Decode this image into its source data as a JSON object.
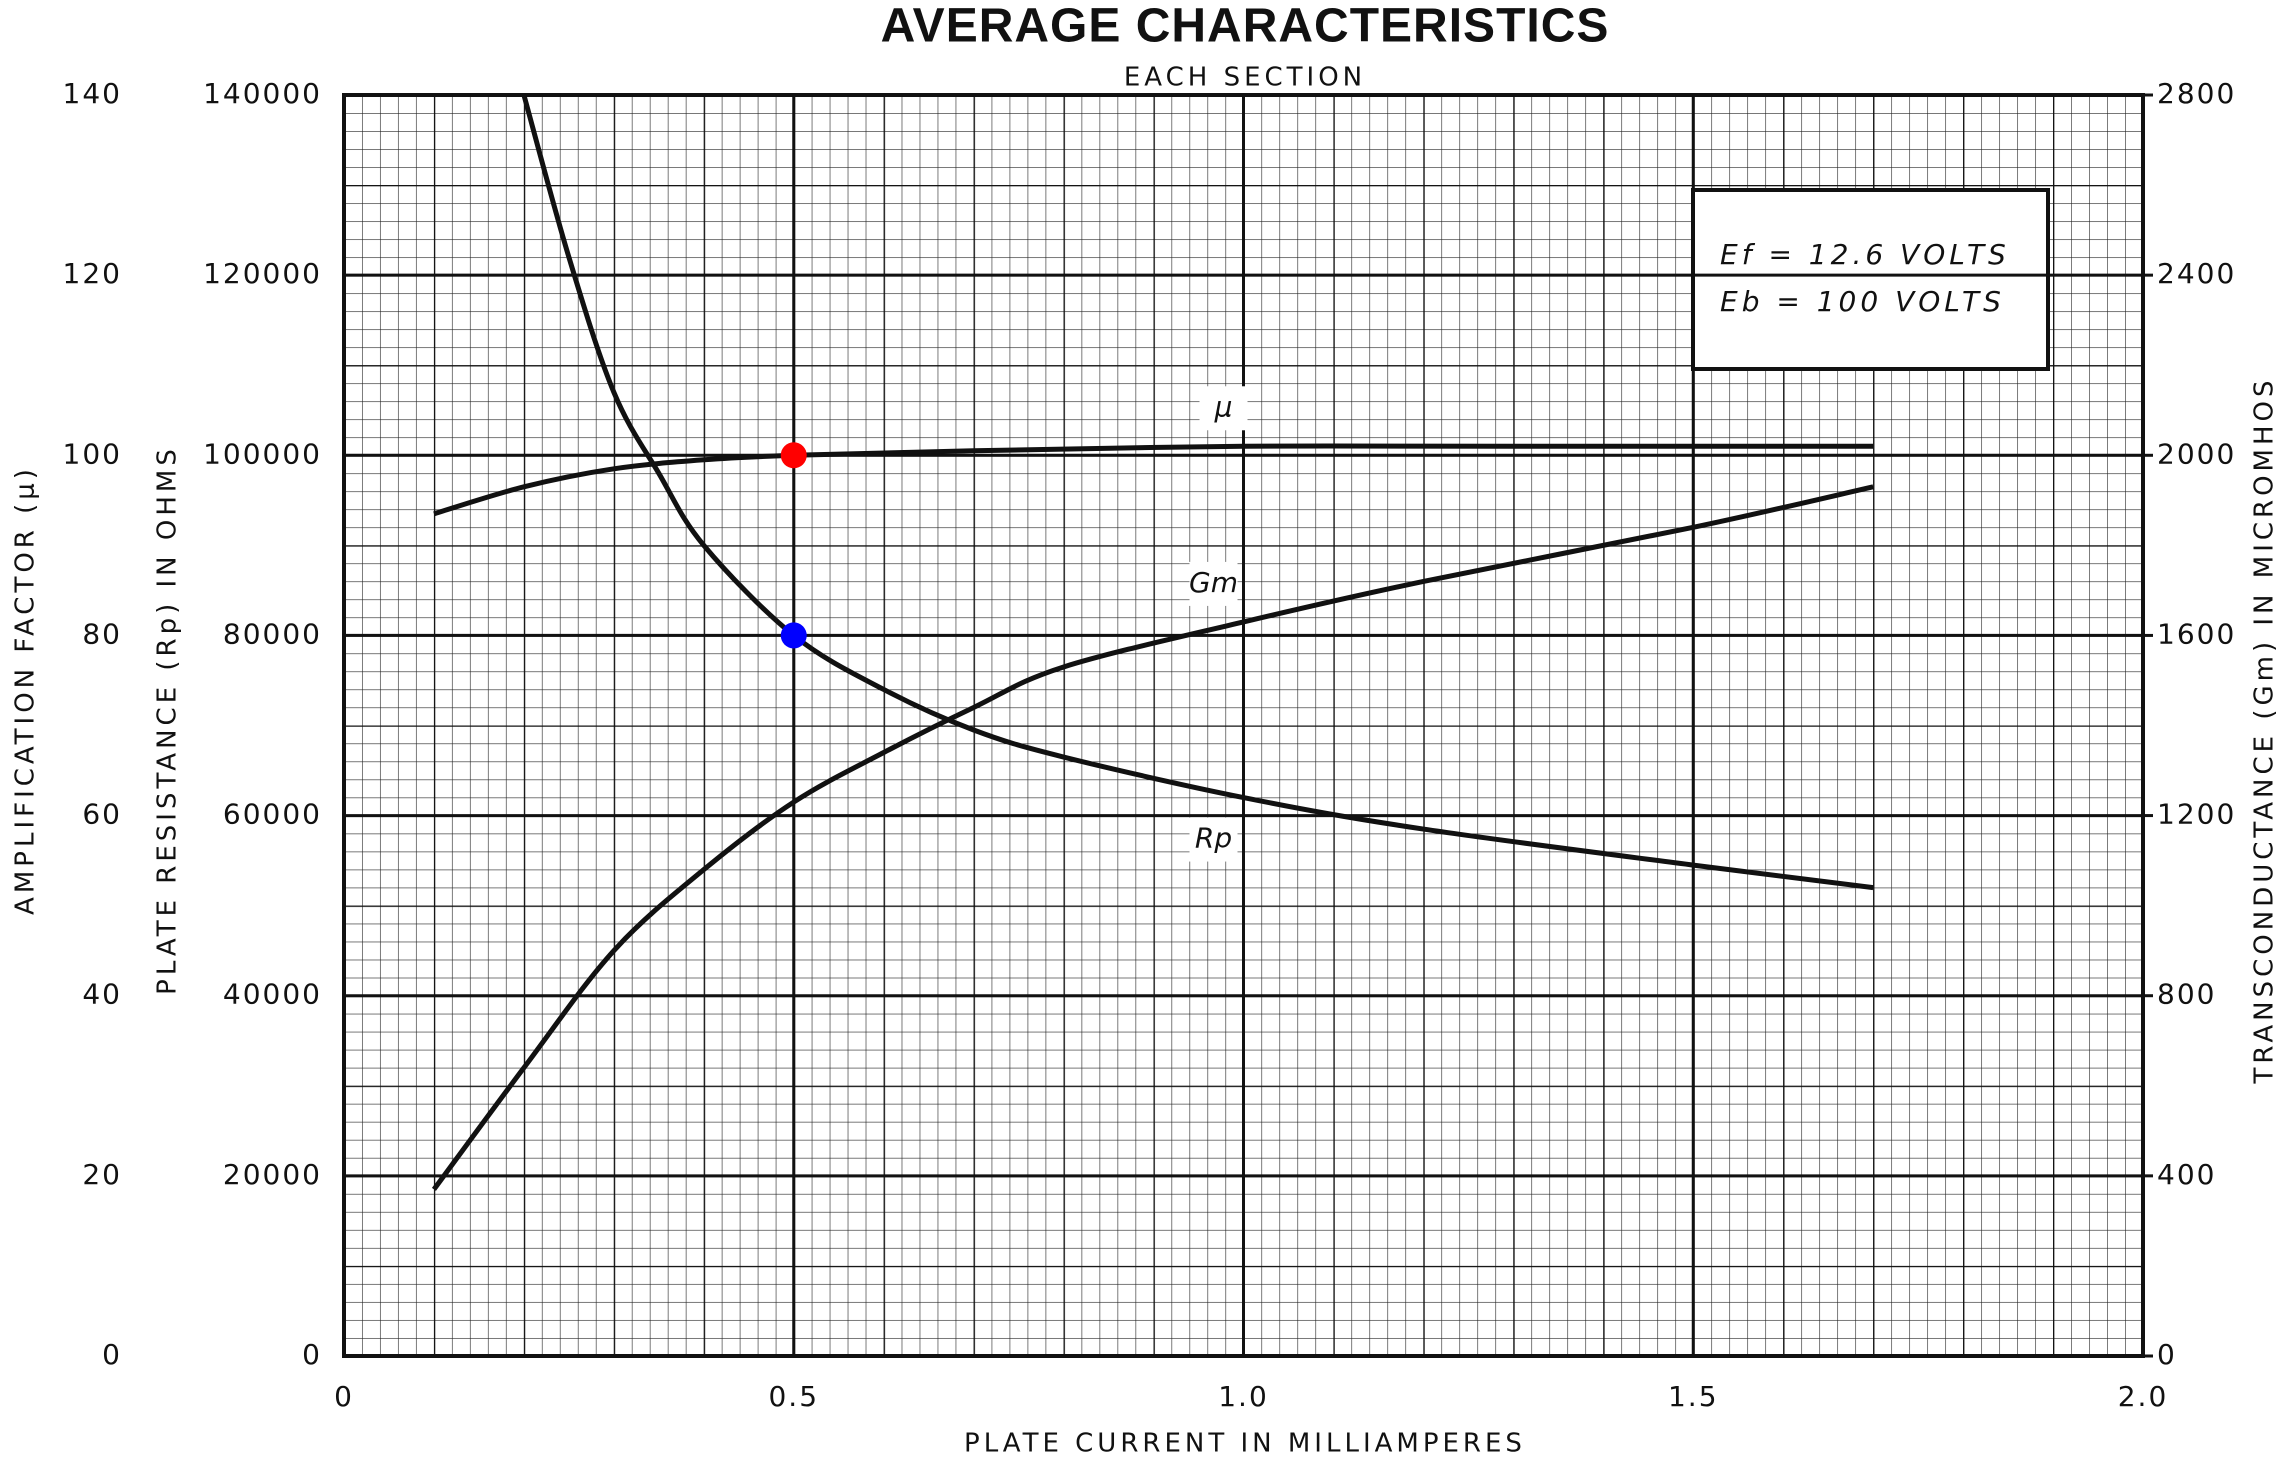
{
  "chart_data": {
    "type": "line",
    "title": "AVERAGE CHARACTERISTICS",
    "subtitle": "EACH SECTION",
    "x_label": "PLATE CURRENT IN MILLIAMPERES",
    "y_label": "PLATE RESISTANCE (Rp) IN OHMS",
    "y2_label": "TRANSCONDUCTANCE (Gm) IN MICROMHOS",
    "y3_label": "AMPLIFICATION FACTOR (μ)",
    "annotations": [
      "Ef = 12.6 VOLTS",
      "Eb = 100 VOLTS"
    ],
    "xlim": [
      0,
      2
    ],
    "xticks": [
      0,
      0.5,
      {
        "value": 1,
        "label": "1.0"
      },
      1.5,
      {
        "value": 2,
        "label": "2.0"
      }
    ],
    "ylim": [
      0,
      140000
    ],
    "yticks": [
      0,
      20000,
      40000,
      60000,
      80000,
      100000,
      120000,
      140000
    ],
    "y2lim": [
      0,
      2800
    ],
    "y2ticks": [
      0,
      400,
      800,
      1200,
      1600,
      2000,
      2400,
      2800
    ],
    "y3lim": [
      0,
      140
    ],
    "y3ticks": [
      0,
      20,
      40,
      60,
      80,
      100,
      120,
      140
    ],
    "grid": true,
    "series": [
      {
        "name": "μ",
        "color": "#111111",
        "axis": "y3",
        "x": [
          0.1,
          0.2,
          0.3,
          0.4,
          0.5,
          0.7,
          1.0,
          1.3,
          1.7
        ],
        "values": [
          93.5,
          96.5,
          98.5,
          99.5,
          100,
          100.5,
          101,
          101,
          101
        ]
      },
      {
        "name": "Gm",
        "color": "#111111",
        "axis": "y2",
        "x": [
          0.1,
          0.2,
          0.3,
          0.4,
          0.5,
          0.6,
          0.7,
          0.8,
          1.0,
          1.2,
          1.5,
          1.7
        ],
        "values": [
          370,
          640,
          900,
          1080,
          1230,
          1340,
          1440,
          1530,
          1630,
          1720,
          1840,
          1930
        ]
      },
      {
        "name": "Rp",
        "color": "#111111",
        "axis": "y",
        "x": [
          0.2,
          0.25,
          0.3,
          0.35,
          0.4,
          0.5,
          0.6,
          0.7,
          0.8,
          1.0,
          1.2,
          1.5,
          1.7
        ],
        "values": [
          140000,
          122000,
          107000,
          98000,
          90000,
          80000,
          74000,
          69500,
          66500,
          62000,
          58500,
          54500,
          52000
        ]
      }
    ],
    "points": [
      {
        "x": 0.5,
        "y": 100,
        "axis": "y3",
        "color": "#ff0000"
      },
      {
        "x": 0.5,
        "y": 80000,
        "axis": "y",
        "color": "#0000ff"
      }
    ]
  }
}
